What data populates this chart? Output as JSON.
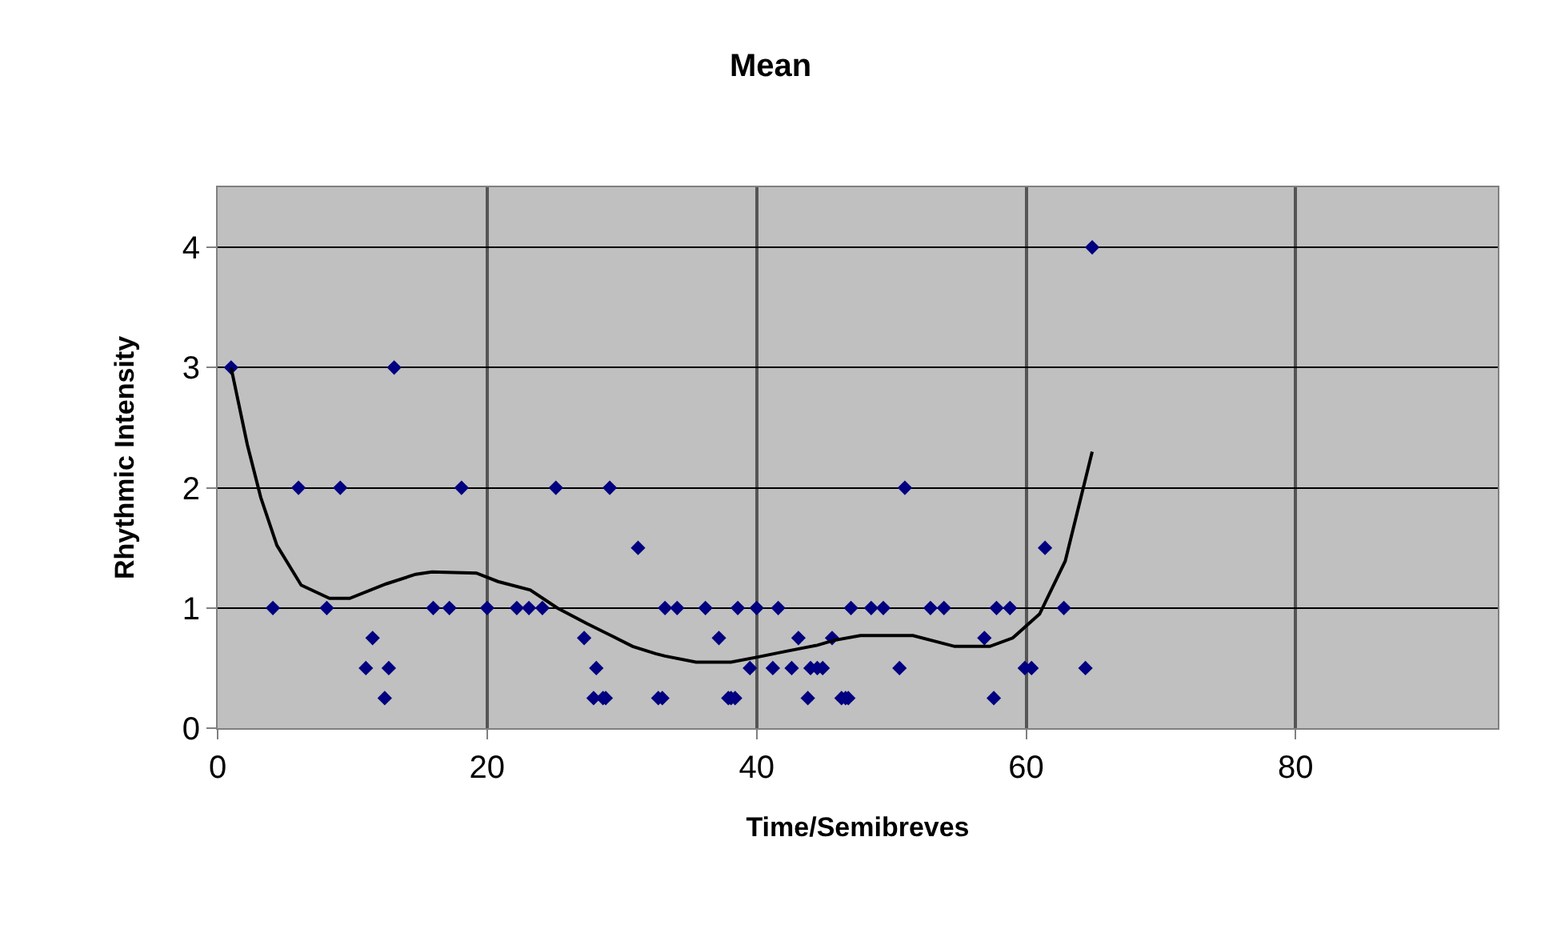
{
  "chart_data": {
    "type": "scatter",
    "title": "Mean",
    "xlabel": "Time/Semibreves",
    "ylabel": "Rhythmic Intensity",
    "xlim": [
      0,
      95
    ],
    "xticks": [
      0,
      20,
      40,
      60,
      80
    ],
    "ylim": [
      0,
      4.5
    ],
    "yticks": [
      0,
      1,
      2,
      3,
      4
    ],
    "grid": true,
    "marker": "diamond",
    "series": [
      {
        "color": "#000080",
        "x": [
          1.0,
          13.1,
          6.0,
          9.1,
          18.1,
          25.1,
          29.1,
          31.2,
          4.1,
          8.1,
          16.0,
          17.2,
          20.0,
          22.2,
          23.1,
          24.1,
          11.5,
          11.0,
          12.7,
          12.4,
          27.2,
          28.1,
          27.9,
          28.6,
          28.8,
          64.9,
          51.0,
          61.4,
          33.2,
          34.1,
          36.2,
          38.6,
          40.0,
          41.6,
          47.0,
          48.5,
          49.4,
          52.9,
          53.9,
          57.8,
          58.8,
          62.8,
          37.2,
          43.1,
          45.6,
          56.9,
          39.5,
          41.2,
          42.6,
          44.0,
          44.5,
          44.9,
          50.6,
          59.9,
          60.4,
          64.4,
          32.7,
          33.0,
          37.9,
          38.1,
          38.4,
          43.8,
          46.3,
          46.6,
          46.8,
          57.6
        ],
        "values": [
          3,
          3,
          2,
          2,
          2,
          2,
          2,
          1.5,
          1,
          1,
          1,
          1,
          1,
          1,
          1,
          1,
          0.75,
          0.5,
          0.5,
          0.25,
          0.75,
          0.5,
          0.25,
          0.25,
          0.25,
          4,
          2,
          1.5,
          1,
          1,
          1,
          1,
          1,
          1,
          1,
          1,
          1,
          1,
          1,
          1,
          1,
          1,
          0.75,
          0.75,
          0.75,
          0.75,
          0.5,
          0.5,
          0.5,
          0.5,
          0.5,
          0.5,
          0.5,
          0.5,
          0.5,
          0.5,
          0.25,
          0.25,
          0.25,
          0.25,
          0.25,
          0.25,
          0.25,
          0.25,
          0.25,
          0.25
        ]
      },
      {
        "type": "line",
        "color": "#000000",
        "line_style": "solid",
        "marker": "none",
        "x": [
          1.0,
          2.2,
          3.2,
          4.4,
          6.2,
          8.3,
          9.8,
          12.5,
          14.7,
          15.9,
          19.2,
          20.8,
          23.2,
          25.2,
          27.4,
          29.2,
          30.8,
          32.5,
          33.2,
          35.5,
          38.1,
          40.0,
          42.2,
          44.5,
          45.7,
          47.7,
          51.6,
          54.7,
          57.3,
          59.0,
          61.0,
          62.9,
          64.9
        ],
        "values": [
          3.0,
          2.36,
          1.92,
          1.52,
          1.19,
          1.08,
          1.08,
          1.2,
          1.28,
          1.3,
          1.29,
          1.22,
          1.15,
          1.0,
          0.87,
          0.77,
          0.68,
          0.62,
          0.6,
          0.55,
          0.55,
          0.59,
          0.64,
          0.69,
          0.73,
          0.77,
          0.77,
          0.68,
          0.68,
          0.75,
          0.95,
          1.39,
          2.3
        ]
      }
    ]
  }
}
